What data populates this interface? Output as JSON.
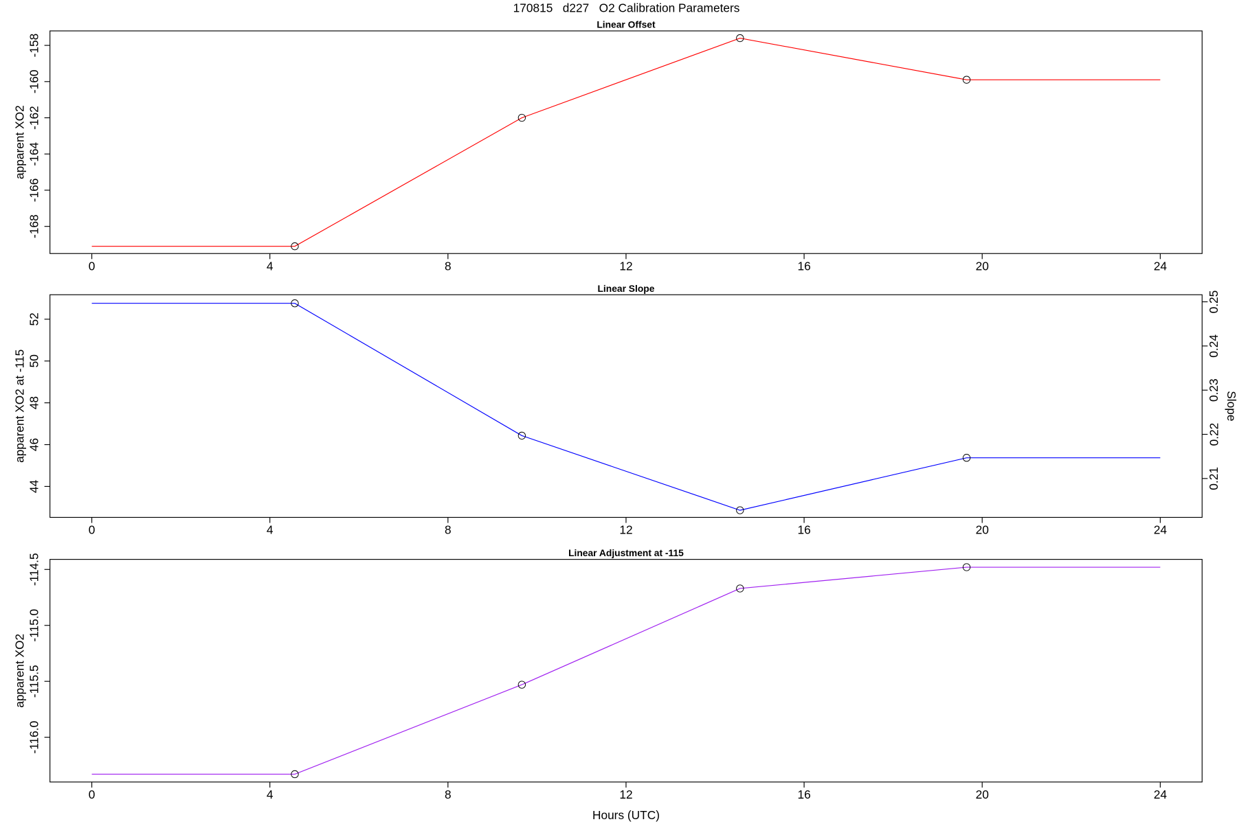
{
  "title": "170815   d227   O2 Calibration Parameters",
  "chart_data": [
    {
      "type": "line",
      "title": "Linear Offset",
      "ylabel": "apparent XO2",
      "color": "#ff0000",
      "x": [
        0,
        4.56,
        9.66,
        14.56,
        19.65,
        24
      ],
      "values": [
        -169.1,
        -169.1,
        -162.0,
        -157.6,
        -159.9,
        -159.9
      ],
      "points": {
        "x": [
          4.56,
          9.66,
          14.56,
          19.65
        ],
        "values": [
          -169.1,
          -162.0,
          -157.6,
          -159.9
        ]
      },
      "xlim": [
        -0.94,
        24.94
      ],
      "xticks": [
        0,
        4,
        8,
        12,
        16,
        20,
        24
      ],
      "ylim": [
        -169.5,
        -157.2
      ],
      "yticks": [
        -168,
        -166,
        -164,
        -162,
        -160,
        -158
      ]
    },
    {
      "type": "line",
      "title": "Linear Slope",
      "ylabel": "apparent XO2 at -115",
      "y2label": "Slope",
      "color": "#0000ff",
      "x": [
        0,
        4.56,
        9.66,
        14.56,
        19.65,
        24
      ],
      "values": [
        52.76,
        52.76,
        46.43,
        42.86,
        45.37,
        45.37
      ],
      "points": {
        "x": [
          4.56,
          9.66,
          14.56,
          19.65
        ],
        "values": [
          52.76,
          46.43,
          42.86,
          45.37
        ]
      },
      "xlim": [
        -0.94,
        24.94
      ],
      "xticks": [
        0,
        4,
        8,
        12,
        16,
        20,
        24
      ],
      "ylim": [
        42.52,
        53.17
      ],
      "yticks": [
        44,
        46,
        48,
        50,
        52
      ],
      "y2lim": [
        0.2012,
        0.2516
      ],
      "y2ticks": [
        0.21,
        0.22,
        0.23,
        0.24,
        0.25
      ]
    },
    {
      "type": "line",
      "title": "Linear Adjustment at -115",
      "ylabel": "apparent XO2",
      "xlabel": "Hours (UTC)",
      "color": "#a020f0",
      "x": [
        0,
        4.56,
        9.66,
        14.56,
        19.65,
        24
      ],
      "values": [
        -116.33,
        -116.33,
        -115.53,
        -114.67,
        -114.48,
        -114.48
      ],
      "points": {
        "x": [
          4.56,
          9.66,
          14.56,
          19.65
        ],
        "values": [
          -116.33,
          -115.53,
          -114.67,
          -114.48
        ]
      },
      "xlim": [
        -0.94,
        24.94
      ],
      "xticks": [
        0,
        4,
        8,
        12,
        16,
        20,
        24
      ],
      "ylim": [
        -116.4,
        -114.41
      ],
      "yticks": [
        {
          "value": -116.0,
          "label": "-116.0"
        },
        -115.5,
        {
          "value": -115.0,
          "label": "-115.0"
        },
        -114.5
      ]
    }
  ]
}
